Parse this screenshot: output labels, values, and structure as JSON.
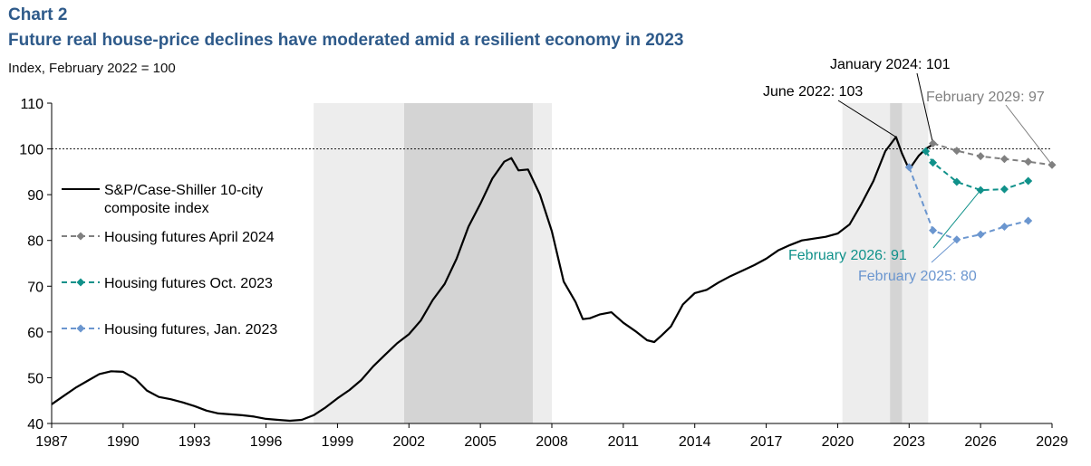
{
  "header": {
    "chart_label": "Chart 2",
    "title": "Future real house-price declines have moderated amid a resilient economy in 2023",
    "unit": "Index, February 2022 = 100"
  },
  "chart_data": {
    "type": "line",
    "title": "Future real house-price declines have moderated amid a resilient economy in 2023",
    "ylabel": "Index, February 2022 = 100",
    "xlabel": "",
    "ylim": [
      40,
      110
    ],
    "xlim": [
      1987,
      2029
    ],
    "yticks": [
      40,
      50,
      60,
      70,
      80,
      90,
      100,
      110
    ],
    "xticks": [
      1987,
      1990,
      1993,
      1996,
      1999,
      2002,
      2005,
      2008,
      2011,
      2014,
      2017,
      2020,
      2023,
      2026,
      2029
    ],
    "reference_line": 100,
    "recessions": [
      {
        "start": 1998.0,
        "end": 2008.0,
        "shade": "light"
      },
      {
        "start": 2001.8,
        "end": 2007.2,
        "shade": "dark"
      },
      {
        "start": 2020.2,
        "end": 2023.8,
        "shade": "light"
      },
      {
        "start": 2022.2,
        "end": 2022.7,
        "shade": "dark"
      }
    ],
    "series": [
      {
        "name": "S&P/Case-Shiller 10-city composite index",
        "legend_lines": [
          "S&P/Case-Shiller 10-city",
          "composite index"
        ],
        "color": "#000000",
        "style": "solid",
        "points": [
          [
            1987.0,
            44.2
          ],
          [
            1987.5,
            46.0
          ],
          [
            1988.0,
            47.8
          ],
          [
            1988.5,
            49.3
          ],
          [
            1989.0,
            50.8
          ],
          [
            1989.5,
            51.4
          ],
          [
            1990.0,
            51.3
          ],
          [
            1990.5,
            49.8
          ],
          [
            1991.0,
            47.2
          ],
          [
            1991.5,
            45.8
          ],
          [
            1992.0,
            45.3
          ],
          [
            1992.5,
            44.6
          ],
          [
            1993.0,
            43.8
          ],
          [
            1993.5,
            42.8
          ],
          [
            1994.0,
            42.2
          ],
          [
            1994.5,
            42.0
          ],
          [
            1995.0,
            41.8
          ],
          [
            1995.5,
            41.5
          ],
          [
            1996.0,
            41.0
          ],
          [
            1996.5,
            40.8
          ],
          [
            1997.0,
            40.6
          ],
          [
            1997.5,
            40.8
          ],
          [
            1998.0,
            41.8
          ],
          [
            1998.5,
            43.5
          ],
          [
            1999.0,
            45.5
          ],
          [
            1999.5,
            47.3
          ],
          [
            2000.0,
            49.5
          ],
          [
            2000.5,
            52.5
          ],
          [
            2001.0,
            55.0
          ],
          [
            2001.5,
            57.5
          ],
          [
            2002.0,
            59.5
          ],
          [
            2002.5,
            62.5
          ],
          [
            2003.0,
            67.0
          ],
          [
            2003.5,
            70.5
          ],
          [
            2004.0,
            76.0
          ],
          [
            2004.5,
            83.0
          ],
          [
            2005.0,
            88.0
          ],
          [
            2005.5,
            93.5
          ],
          [
            2006.0,
            97.2
          ],
          [
            2006.3,
            98.0
          ],
          [
            2006.6,
            95.3
          ],
          [
            2007.0,
            95.5
          ],
          [
            2007.5,
            90.0
          ],
          [
            2008.0,
            82.0
          ],
          [
            2008.5,
            71.0
          ],
          [
            2009.0,
            66.5
          ],
          [
            2009.3,
            62.8
          ],
          [
            2009.6,
            63.0
          ],
          [
            2010.0,
            63.8
          ],
          [
            2010.5,
            64.3
          ],
          [
            2011.0,
            62.0
          ],
          [
            2011.5,
            60.2
          ],
          [
            2012.0,
            58.2
          ],
          [
            2012.3,
            57.8
          ],
          [
            2012.6,
            59.2
          ],
          [
            2013.0,
            61.2
          ],
          [
            2013.5,
            66.0
          ],
          [
            2014.0,
            68.5
          ],
          [
            2014.5,
            69.2
          ],
          [
            2015.0,
            70.8
          ],
          [
            2015.5,
            72.2
          ],
          [
            2016.0,
            73.4
          ],
          [
            2016.5,
            74.6
          ],
          [
            2017.0,
            76.0
          ],
          [
            2017.5,
            77.8
          ],
          [
            2018.0,
            79.0
          ],
          [
            2018.5,
            80.0
          ],
          [
            2019.0,
            80.4
          ],
          [
            2019.5,
            80.8
          ],
          [
            2020.0,
            81.5
          ],
          [
            2020.5,
            83.5
          ],
          [
            2021.0,
            88.0
          ],
          [
            2021.5,
            93.0
          ],
          [
            2022.0,
            99.5
          ],
          [
            2022.45,
            102.6
          ],
          [
            2022.7,
            99.0
          ],
          [
            2023.0,
            95.5
          ],
          [
            2023.4,
            98.5
          ],
          [
            2023.7,
            100.0
          ],
          [
            2024.0,
            101.0
          ]
        ]
      },
      {
        "name": "Housing futures April 2024",
        "color": "#808080",
        "style": "dashed-diamond",
        "points": [
          [
            2024.0,
            101.2
          ],
          [
            2025.0,
            99.6
          ],
          [
            2026.0,
            98.4
          ],
          [
            2027.0,
            97.8
          ],
          [
            2028.0,
            97.2
          ],
          [
            2029.0,
            96.5
          ]
        ]
      },
      {
        "name": "Housing futures Oct. 2023",
        "color": "#10918a",
        "style": "dashed-diamond",
        "points": [
          [
            2023.7,
            99.5
          ],
          [
            2024.0,
            97.0
          ],
          [
            2025.0,
            92.8
          ],
          [
            2026.0,
            91.0
          ],
          [
            2027.0,
            91.2
          ],
          [
            2028.0,
            93.0
          ]
        ]
      },
      {
        "name": "Housing futures, Jan. 2023",
        "color": "#6b96cf",
        "style": "dashed-diamond",
        "points": [
          [
            2023.0,
            96.0
          ],
          [
            2024.0,
            82.2
          ],
          [
            2025.0,
            80.2
          ],
          [
            2026.0,
            81.3
          ],
          [
            2027.0,
            83.0
          ],
          [
            2028.0,
            84.3
          ]
        ]
      }
    ],
    "annotations": [
      {
        "text": "June 2022: 103",
        "color": "#000000",
        "at": [
          2022.45,
          102.6
        ]
      },
      {
        "text": "January 2024: 101",
        "color": "#000000",
        "at": [
          2024.0,
          101.2
        ]
      },
      {
        "text": "February 2029: 97",
        "color": "#808080",
        "at": [
          2029.0,
          96.5
        ]
      },
      {
        "text": "February 2026: 91",
        "color": "#10918a",
        "at": [
          2026.0,
          91.0
        ]
      },
      {
        "text": "February 2025: 80",
        "color": "#6b96cf",
        "at": [
          2025.0,
          80.2
        ]
      }
    ]
  }
}
